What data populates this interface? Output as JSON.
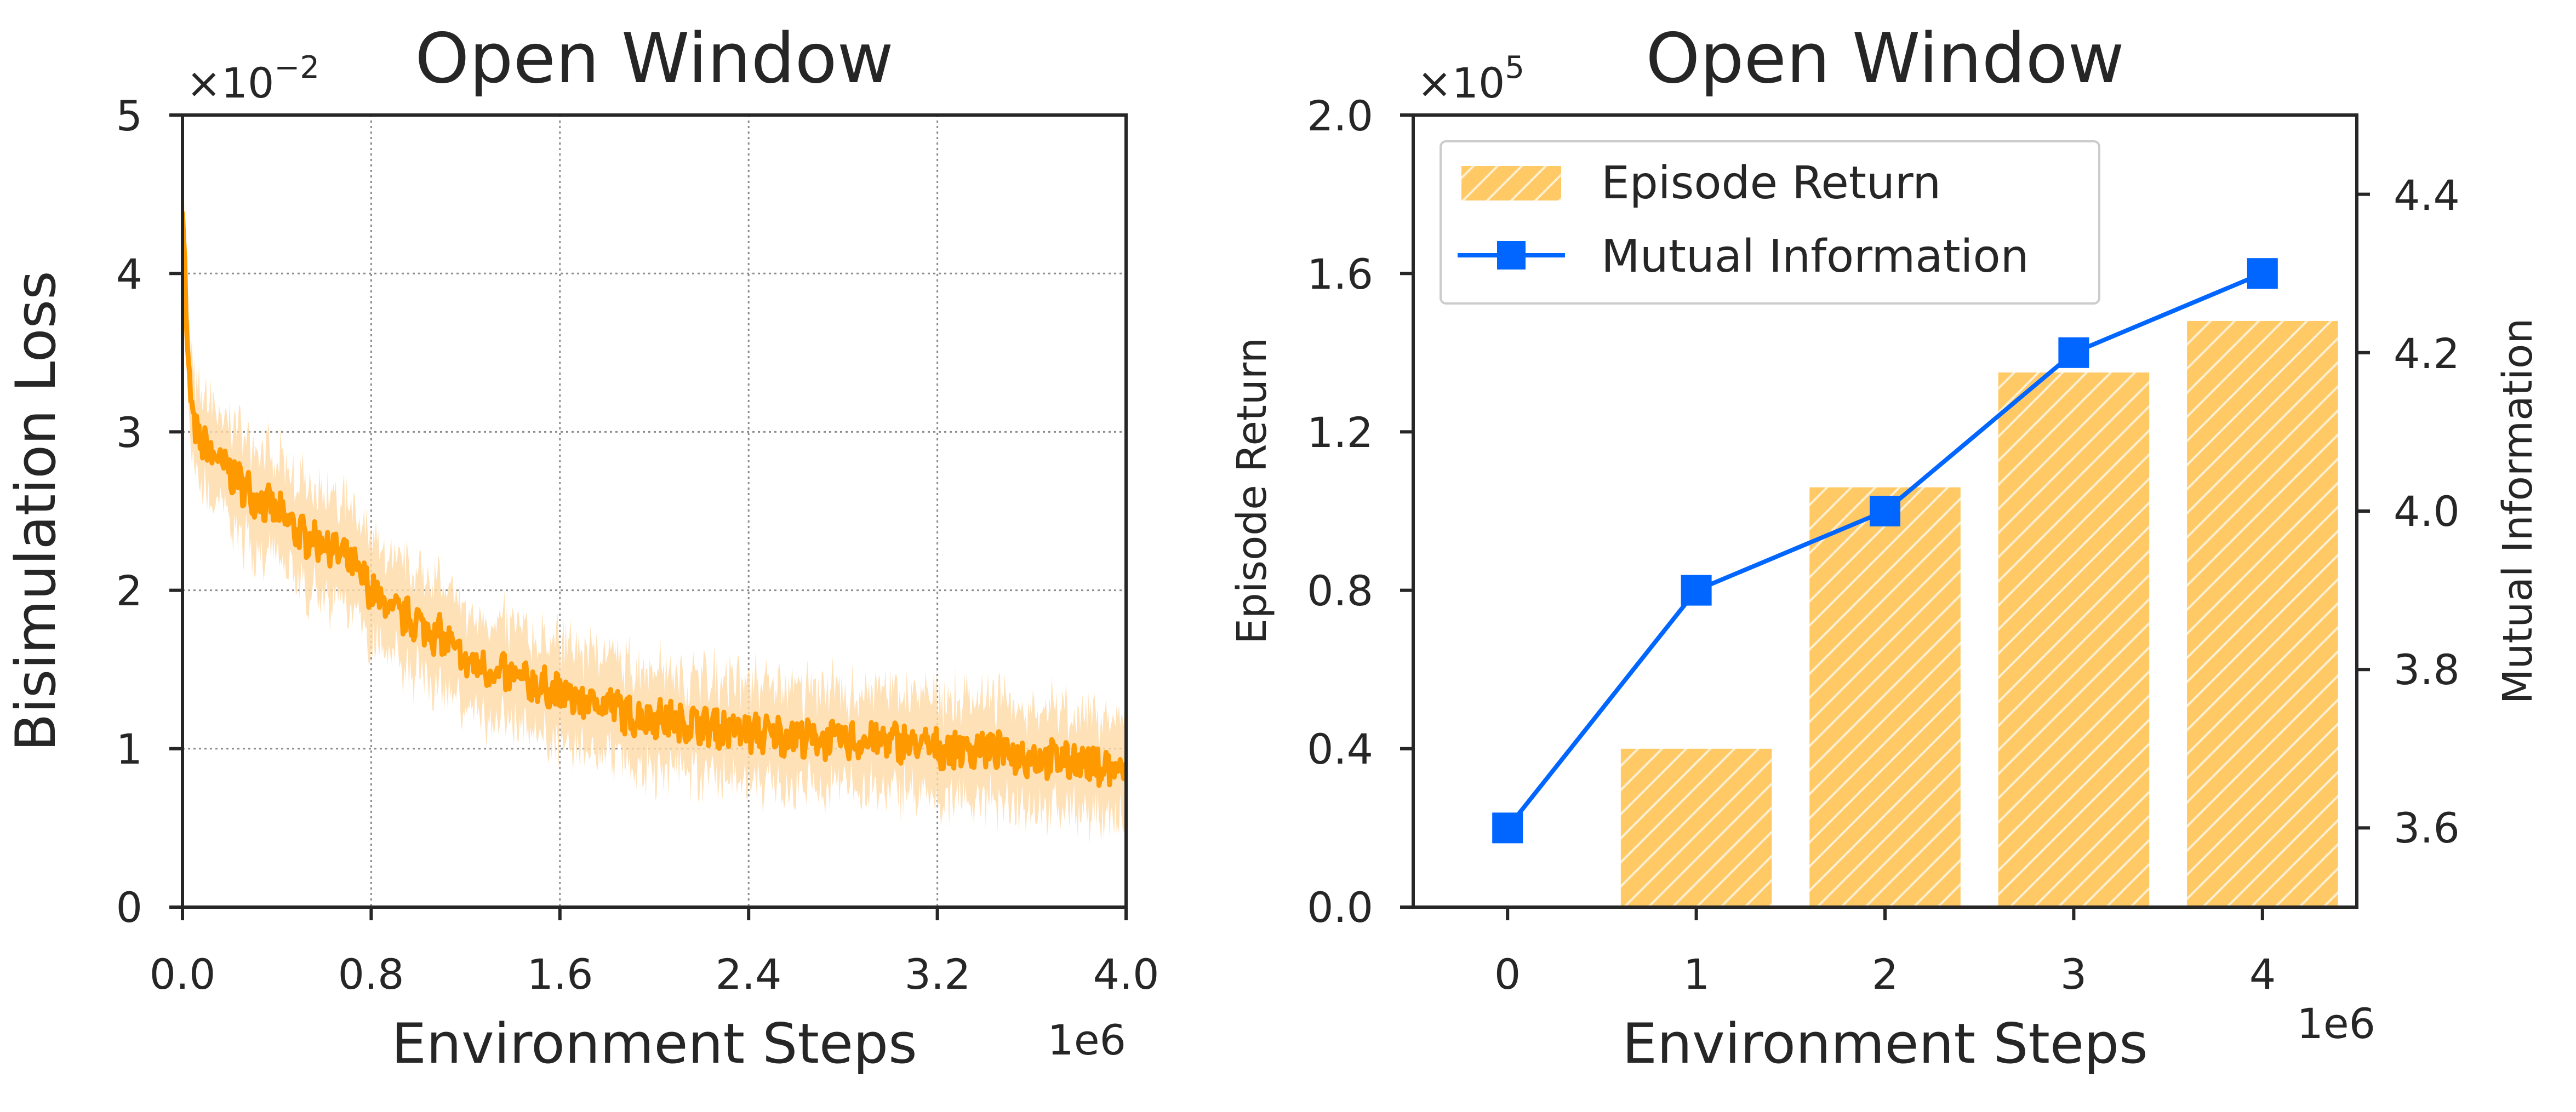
{
  "colors": {
    "loss_line": "#ff9900",
    "loss_band": "#ffd9a6",
    "bar_fill": "#ffc966",
    "bar_hatch": "#ffffff",
    "mi_line": "#0066ff",
    "axes": "#262626",
    "grid": "#8c8c8c"
  },
  "chart_data": [
    {
      "type": "line",
      "title": "Open Window",
      "xlabel": "Environment Steps",
      "ylabel": "Bisimulation Loss",
      "x_offset_label": "1e6",
      "y_offset_label": "×10",
      "y_offset_exp": "−2",
      "xlim": [
        0.0,
        4.0
      ],
      "ylim": [
        0,
        5
      ],
      "xticks": [
        "0.0",
        "0.8",
        "1.6",
        "2.4",
        "3.2",
        "4.0"
      ],
      "yticks": [
        "0",
        "1",
        "2",
        "3",
        "4",
        "5"
      ],
      "grid": true,
      "series": [
        {
          "x": [
            0.0,
            0.02,
            0.05,
            0.1,
            0.2,
            0.3,
            0.4,
            0.5,
            0.6,
            0.7,
            0.8,
            0.9,
            1.0,
            1.1,
            1.2,
            1.3,
            1.4,
            1.5,
            1.6,
            1.7,
            1.8,
            1.9,
            2.0,
            2.2,
            2.4,
            2.6,
            2.8,
            3.0,
            3.2,
            3.4,
            3.6,
            3.8,
            4.0
          ],
          "y": [
            4.5,
            3.5,
            3.0,
            2.9,
            2.75,
            2.6,
            2.5,
            2.35,
            2.3,
            2.2,
            2.0,
            1.85,
            1.8,
            1.7,
            1.55,
            1.5,
            1.45,
            1.4,
            1.35,
            1.3,
            1.3,
            1.2,
            1.2,
            1.15,
            1.1,
            1.08,
            1.05,
            1.05,
            1.0,
            1.0,
            0.95,
            0.92,
            0.85
          ],
          "band": 0.3
        }
      ]
    },
    {
      "type": "bar",
      "title": "Open Window",
      "xlabel": "Environment Steps",
      "ylabel": "Episode Return",
      "y2label": "Mutual Information",
      "x_offset_label": "1e6",
      "y_offset_label": "×10",
      "y_offset_exp": "5",
      "categories": [
        "0",
        "1",
        "2",
        "3",
        "4"
      ],
      "xlim": [
        -0.5,
        4.5
      ],
      "ylim": [
        0.0,
        2.0
      ],
      "y2lim": [
        3.5,
        4.5
      ],
      "yticks": [
        "0.0",
        "0.4",
        "0.8",
        "1.2",
        "1.6",
        "2.0"
      ],
      "y2ticks": [
        "3.6",
        "3.8",
        "4.0",
        "4.2",
        "4.4"
      ],
      "legend_position": "top-left",
      "series": [
        {
          "name": "Episode Return",
          "type": "bar",
          "axis": "left",
          "values": [
            0.0,
            0.4,
            1.06,
            1.35,
            1.48
          ]
        },
        {
          "name": "Mutual Information",
          "type": "line",
          "axis": "right",
          "marker": "square",
          "values": [
            3.6,
            3.9,
            4.0,
            4.2,
            4.3
          ]
        }
      ]
    }
  ]
}
